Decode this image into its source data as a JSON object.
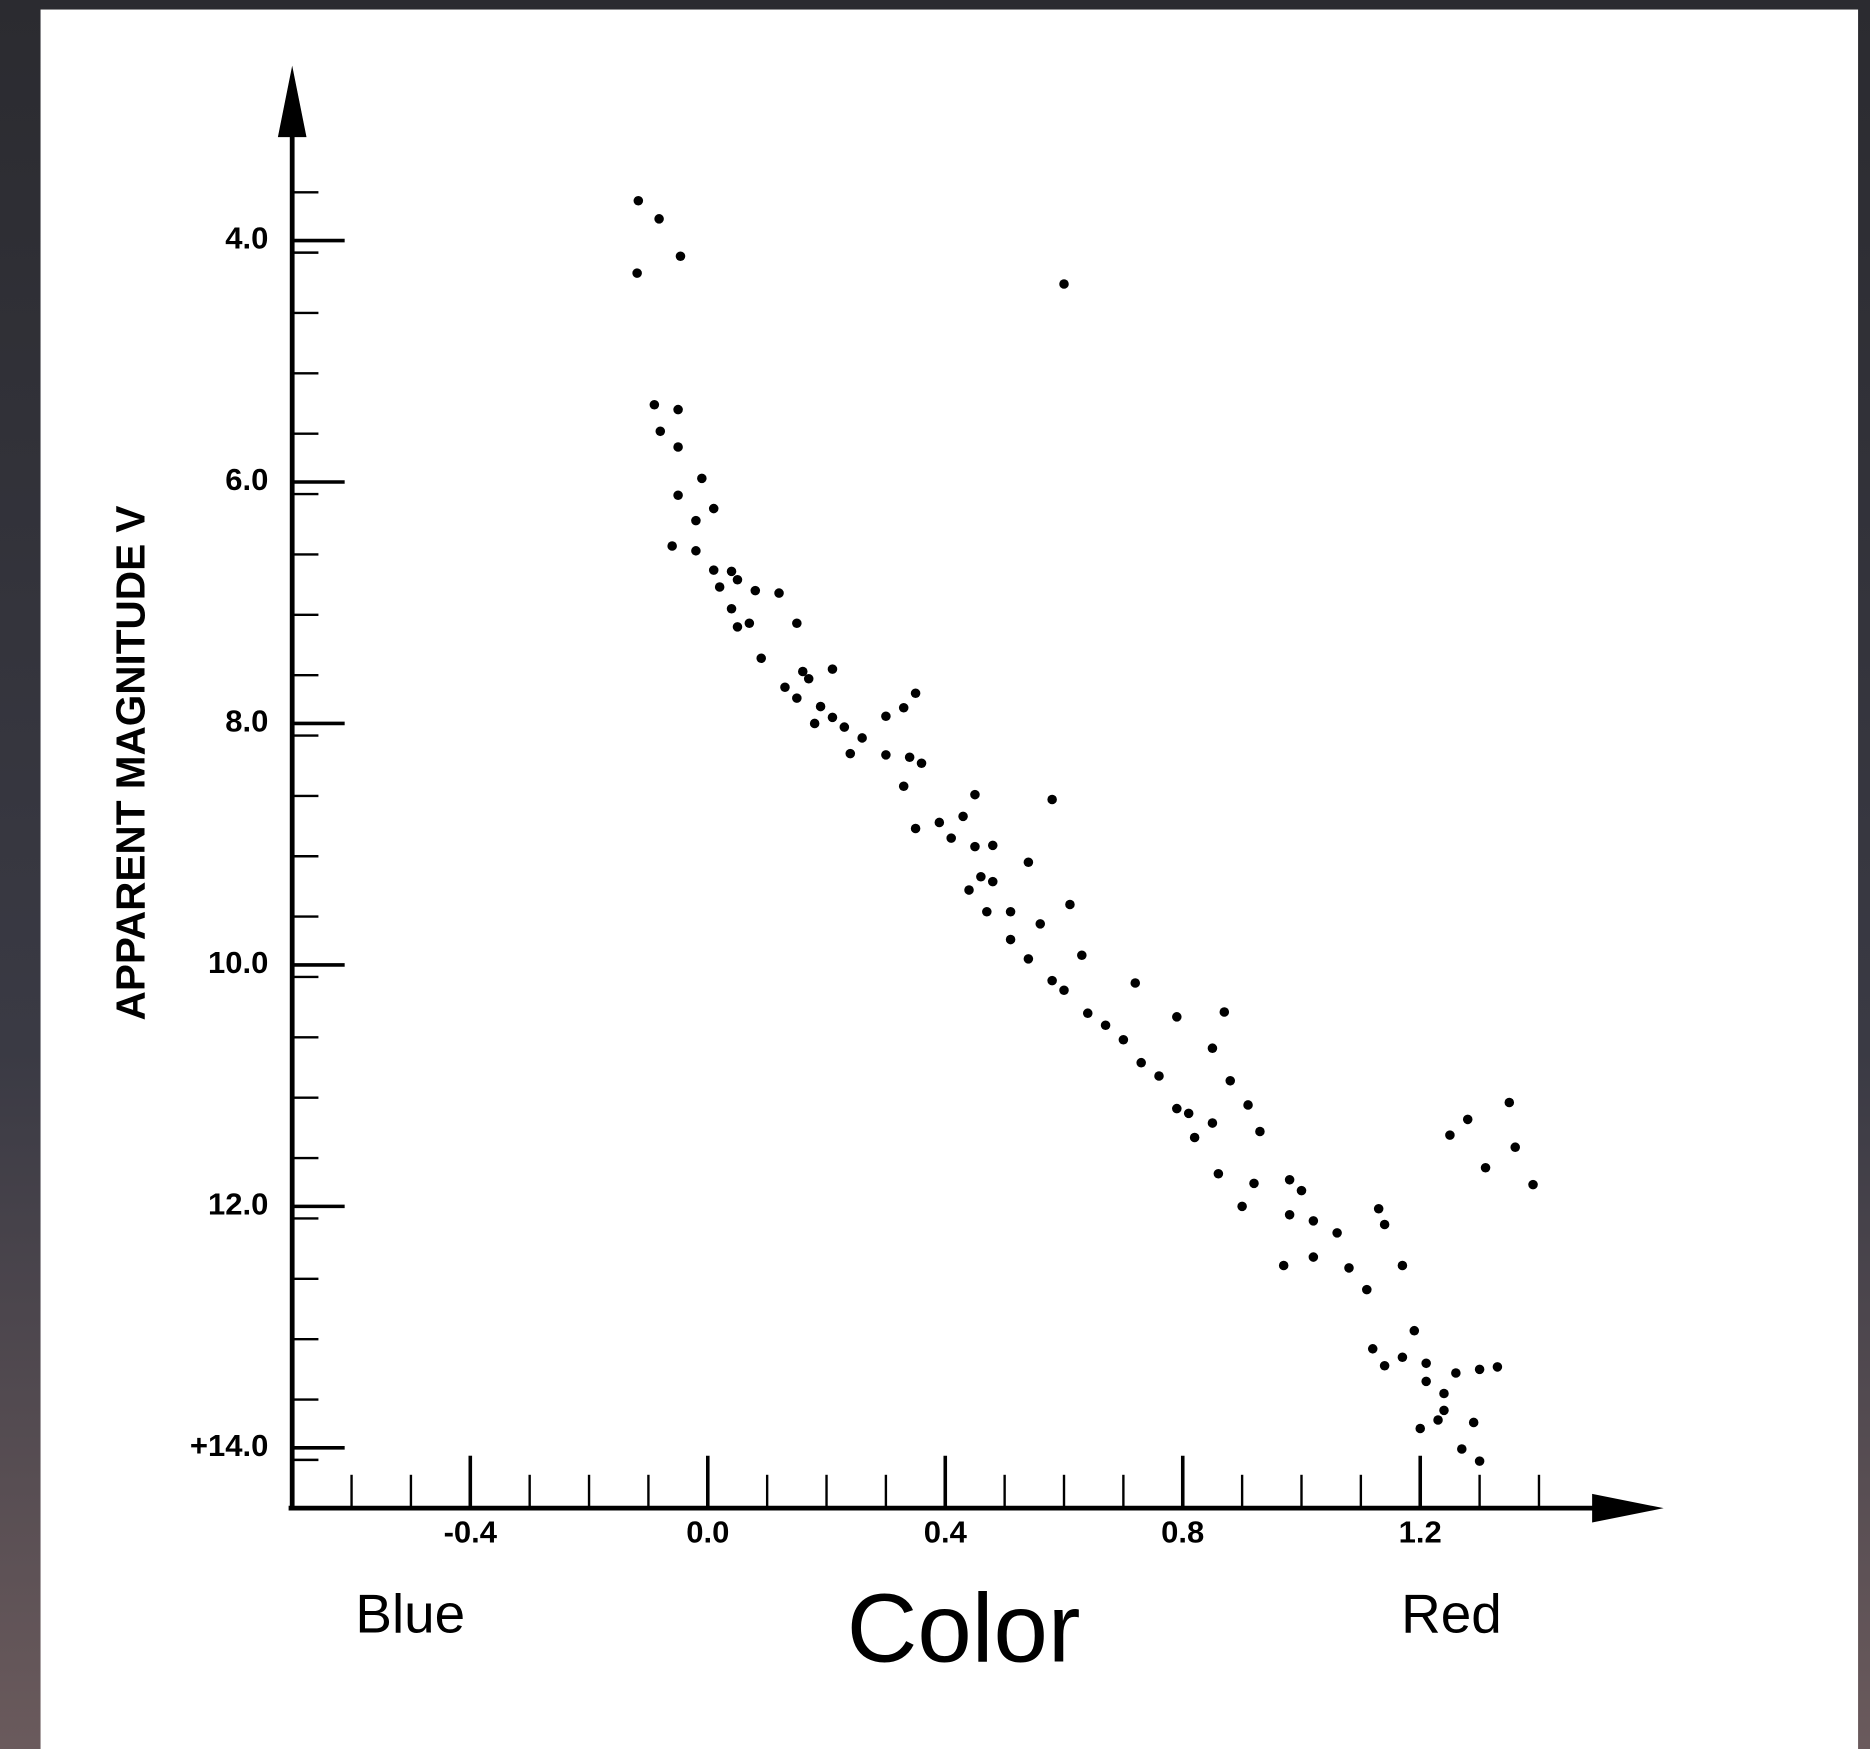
{
  "chart_data": {
    "type": "scatter",
    "x_label": "Color",
    "y_label": "APPARENT MAGNITUDE V",
    "annotations": [
      "Blue",
      "Red"
    ],
    "color": "#000000",
    "xlim": [
      -0.7,
      1.6
    ],
    "ylim": [
      14.5,
      2.6
    ],
    "xticks": [
      {
        "value": -0.4,
        "label": "-0.4"
      },
      {
        "value": 0,
        "label": "0.0"
      },
      {
        "value": 0.4,
        "label": "0.4"
      },
      {
        "value": 0.8,
        "label": "0.8"
      },
      {
        "value": 1.2,
        "label": "1.2"
      }
    ],
    "yticks": [
      {
        "value": 4,
        "label": "4.0"
      },
      {
        "value": 6,
        "label": "6.0"
      },
      {
        "value": 8,
        "label": "8.0"
      },
      {
        "value": 10,
        "label": "10.0"
      },
      {
        "value": 12,
        "label": "12.0"
      },
      {
        "value": 14,
        "label": "+14.0"
      }
    ],
    "x": [
      -0.117,
      -0.082,
      -0.046,
      -0.119,
      0.6,
      -0.09,
      -0.05,
      -0.08,
      -0.05,
      -0.01,
      -0.05,
      0.01,
      -0.02,
      -0.06,
      -0.02,
      0.01,
      0.04,
      0.02,
      0.05,
      0.12,
      0.08,
      0.04,
      0.05,
      0.07,
      0.09,
      0.15,
      0.13,
      0.16,
      0.17,
      0.21,
      0.15,
      0.19,
      0.18,
      0.21,
      0.23,
      0.24,
      0.26,
      0.3,
      0.33,
      0.35,
      0.3,
      0.34,
      0.33,
      0.36,
      0.35,
      0.39,
      0.41,
      0.43,
      0.45,
      0.45,
      0.48,
      0.46,
      0.44,
      0.48,
      0.47,
      0.51,
      0.51,
      0.54,
      0.58,
      0.56,
      0.54,
      0.58,
      0.61,
      0.63,
      0.6,
      0.64,
      0.67,
      0.7,
      0.72,
      0.73,
      0.76,
      0.79,
      0.79,
      0.81,
      0.82,
      0.85,
      0.87,
      0.85,
      0.88,
      0.86,
      0.91,
      0.93,
      0.9,
      0.92,
      0.98,
      0.98,
      0.97,
      1.0,
      1.02,
      1.02,
      1.06,
      1.08,
      1.13,
      1.14,
      1.11,
      1.17,
      1.12,
      1.14,
      1.17,
      1.19,
      1.21,
      1.21,
      1.24,
      1.24,
      1.2,
      1.23,
      1.26,
      1.3,
      1.33,
      1.29,
      1.27,
      1.3,
      1.25,
      1.28,
      1.31,
      1.35,
      1.36,
      1.39
    ],
    "values": [
      3.67,
      3.82,
      4.13,
      4.27,
      4.36,
      5.36,
      5.4,
      5.58,
      5.71,
      5.97,
      6.11,
      6.22,
      6.32,
      6.53,
      6.57,
      6.73,
      6.74,
      6.87,
      6.81,
      6.92,
      6.9,
      7.05,
      7.2,
      7.17,
      7.46,
      7.17,
      7.7,
      7.57,
      7.63,
      7.55,
      7.79,
      7.86,
      8.0,
      7.95,
      8.03,
      8.25,
      8.12,
      7.94,
      7.87,
      7.75,
      8.26,
      8.28,
      8.52,
      8.33,
      8.87,
      8.82,
      8.95,
      8.77,
      8.59,
      9.02,
      9.01,
      9.27,
      9.38,
      9.31,
      9.56,
      9.56,
      9.79,
      9.15,
      8.63,
      9.66,
      9.95,
      10.13,
      9.5,
      9.92,
      10.21,
      10.4,
      10.5,
      10.62,
      10.15,
      10.81,
      10.92,
      10.43,
      11.19,
      11.23,
      11.43,
      11.31,
      10.39,
      10.69,
      10.96,
      11.73,
      11.16,
      11.38,
      12.0,
      11.81,
      11.78,
      12.07,
      12.49,
      11.87,
      12.12,
      12.42,
      12.22,
      12.51,
      12.02,
      12.15,
      12.69,
      12.49,
      13.18,
      13.32,
      13.25,
      13.03,
      13.3,
      13.45,
      13.55,
      13.69,
      13.84,
      13.77,
      13.38,
      13.35,
      13.33,
      13.79,
      14.01,
      14.11,
      11.41,
      11.28,
      11.68,
      11.14,
      11.51,
      11.82
    ]
  }
}
